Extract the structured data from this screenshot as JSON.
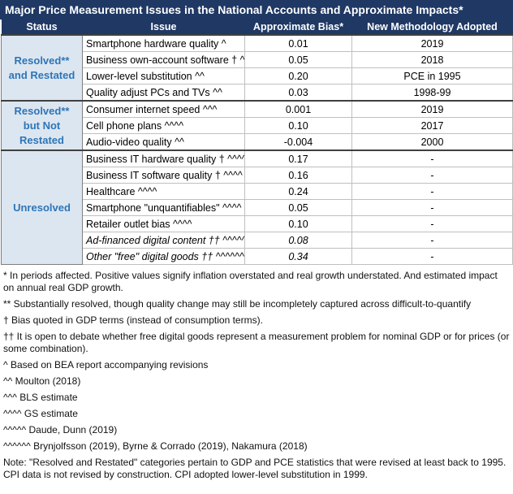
{
  "title": "Major Price Measurement Issues in the National Accounts and Approximate Impacts*",
  "header": [
    "Status",
    "Issue",
    "Approximate Bias*",
    "New Methodology Adopted"
  ],
  "groups": [
    {
      "status": "Resolved** and Restated",
      "rows": [
        {
          "issue": "Smartphone hardware quality ^",
          "bias": "0.01",
          "method": "2019"
        },
        {
          "issue": "Business own-account software † ^",
          "bias": "0.05",
          "method": "2018"
        },
        {
          "issue": "Lower-level substitution ^^",
          "bias": "0.20",
          "method": "PCE in 1995"
        },
        {
          "issue": "Quality adjust PCs and TVs ^^",
          "bias": "0.03",
          "method": "1998-99"
        }
      ]
    },
    {
      "status": "Resolved** but Not Restated",
      "rows": [
        {
          "issue": "Consumer internet speed ^^^",
          "bias": "0.001",
          "method": "2019"
        },
        {
          "issue": "Cell phone plans ^^^^",
          "bias": "0.10",
          "method": "2017"
        },
        {
          "issue": "Audio-video quality ^^",
          "bias": "-0.004",
          "method": "2000"
        }
      ]
    },
    {
      "status": "Unresolved",
      "rows": [
        {
          "issue": "Business IT hardware quality † ^^^^",
          "bias": "0.17",
          "method": "-"
        },
        {
          "issue": "Business IT software quality † ^^^^",
          "bias": "0.16",
          "method": "-"
        },
        {
          "issue": "Healthcare   ^^^^",
          "bias": "0.24",
          "method": "-"
        },
        {
          "issue": "Smartphone \"unquantifiables\" ^^^^",
          "bias": "0.05",
          "method": "-"
        },
        {
          "issue": "Retailer outlet bias ^^^^",
          "bias": "0.10",
          "method": "-"
        },
        {
          "issue": "Ad-financed digital content †† ^^^^^^",
          "bias": "0.08",
          "method": "-",
          "italic": true
        },
        {
          "issue": "Other \"free\" digital goods †† ^^^^^^",
          "bias": "0.34",
          "method": "-",
          "italic": true
        }
      ]
    }
  ],
  "footnotes": [
    "* In periods affected. Positive values signify inflation overstated and real growth understated. And estimated impact on annual real GDP growth.",
    "** Substantially resolved, though quality change may still be incompletely captured across difficult-to-quantify",
    "† Bias quoted in GDP terms (instead of consumption terms).",
    "†† It is open to debate whether free digital goods represent a measurement problem for nominal GDP or for prices (or some combination).",
    "^ Based on BEA report accompanying revisions",
    "^^ Moulton (2018)",
    "^^^ BLS estimate",
    "^^^^ GS estimate",
    "^^^^^ Daude, Dunn (2019)",
    "^^^^^^ Brynjolfsson (2019), Byrne & Corrado (2019), Nakamura (2018)",
    "Note: \"Resolved and Restated\" categories pertain to GDP and PCE statistics that were revised at least back to 1995. CPI data is not revised by construction. CPI adopted lower-level substitution in 1999."
  ]
}
